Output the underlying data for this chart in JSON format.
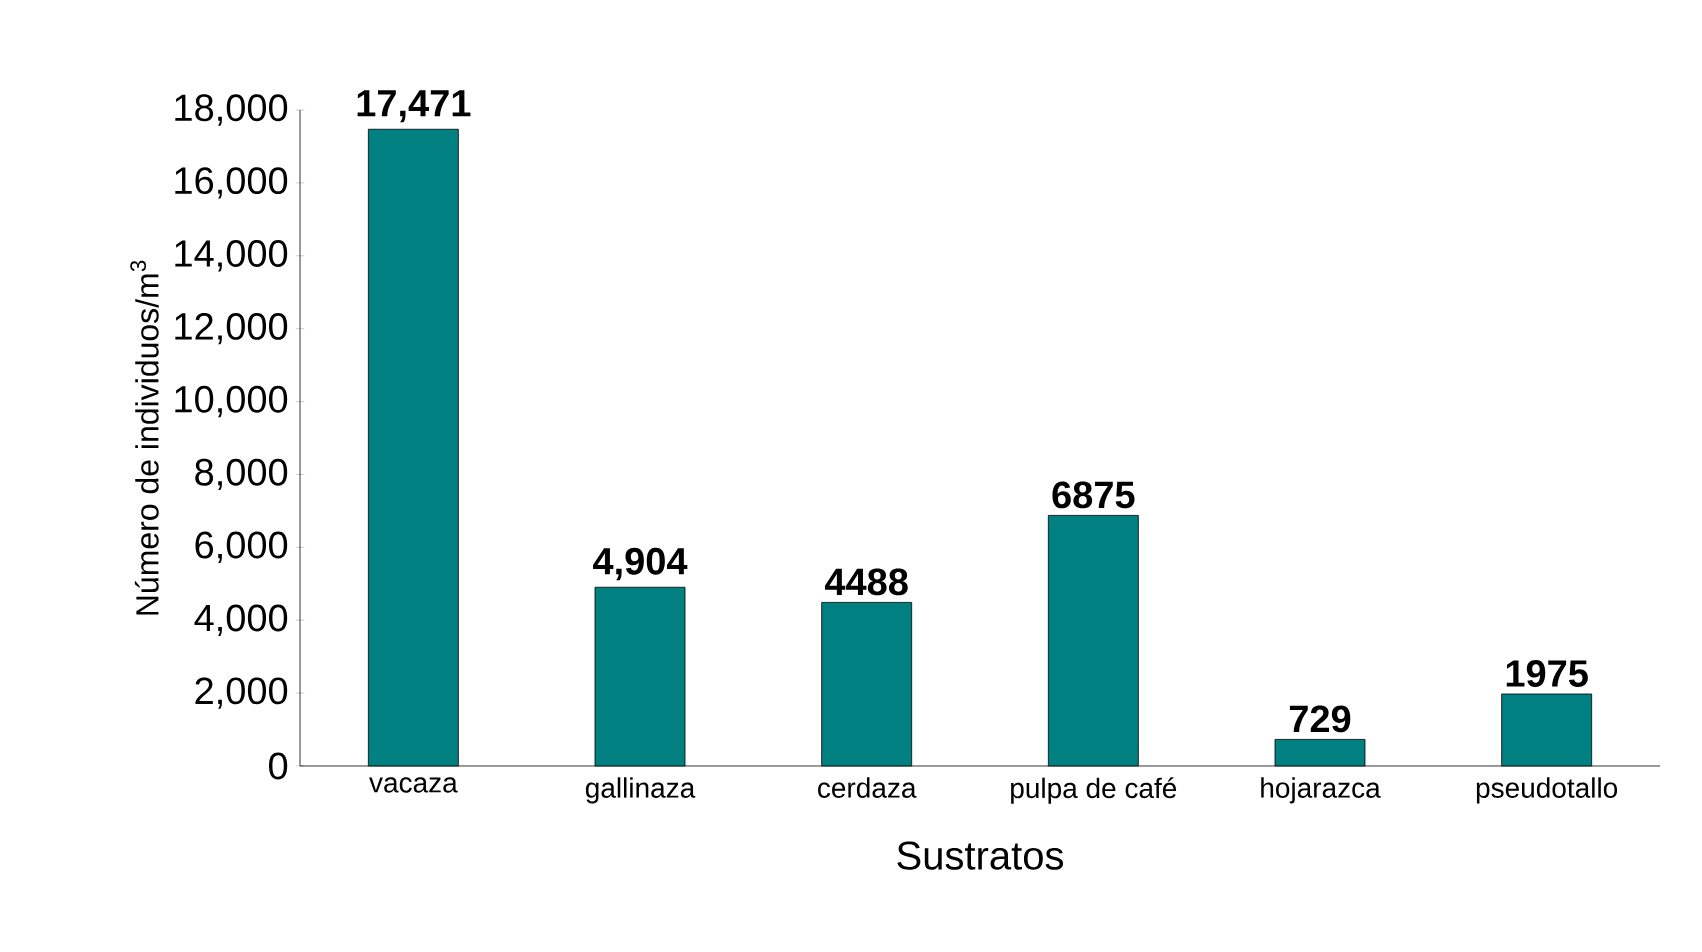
{
  "chart_data": {
    "type": "bar",
    "xlabel": "Sustratos",
    "ylabel": "Número de individuos/m$^{3}$",
    "categories": [
      "vacaza",
      "gallinaza",
      "cerdaza",
      "pulpa de café",
      "hojarazca",
      "pseudotallo"
    ],
    "values": [
      17471,
      4904,
      4488,
      6875,
      729,
      1975
    ],
    "value_labels": [
      "17,471",
      "4,904",
      "4488",
      "6875",
      "729",
      "1975"
    ],
    "color": "#008080",
    "ylim": [
      0,
      18000
    ],
    "yticks": [
      {
        "value": 0,
        "label": "0"
      },
      {
        "value": 2000,
        "label": "2,000"
      },
      {
        "value": 4000,
        "label": "4,000"
      },
      {
        "value": 6000,
        "label": "6,000"
      },
      {
        "value": 8000,
        "label": "8,000"
      },
      {
        "value": 10000,
        "label": "10,000"
      },
      {
        "value": 12000,
        "label": "12,000"
      },
      {
        "value": 14000,
        "label": "14,000"
      },
      {
        "value": 16000,
        "label": "16,000"
      },
      {
        "value": 18000,
        "label": "18,000"
      }
    ]
  }
}
